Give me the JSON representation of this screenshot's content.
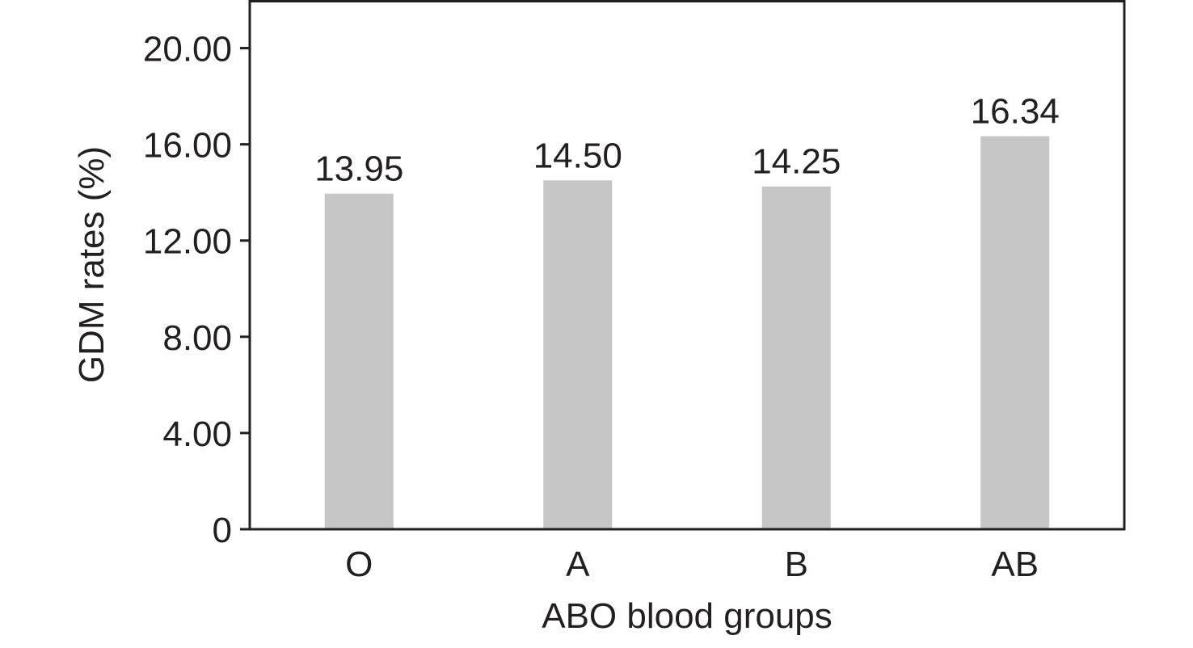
{
  "chart_data": {
    "type": "bar",
    "title": "",
    "xlabel": "ABO blood groups",
    "ylabel": "GDM rates (%)",
    "categories": [
      "O",
      "A",
      "B",
      "AB"
    ],
    "values": [
      13.95,
      14.5,
      14.25,
      16.34
    ],
    "data_labels": [
      "13.95",
      "14.50",
      "14.25",
      "16.34"
    ],
    "ylim": [
      0,
      22
    ],
    "yticks": [
      0,
      4,
      8,
      12,
      16,
      20
    ],
    "ytick_labels": [
      "0",
      "4.00",
      "8.00",
      "12.00",
      "16.00",
      "20.00"
    ],
    "grid": false,
    "legend": "none",
    "bar_color": "#c6c6c6",
    "axis_color": "#231f20",
    "text_color": "#231f20"
  }
}
